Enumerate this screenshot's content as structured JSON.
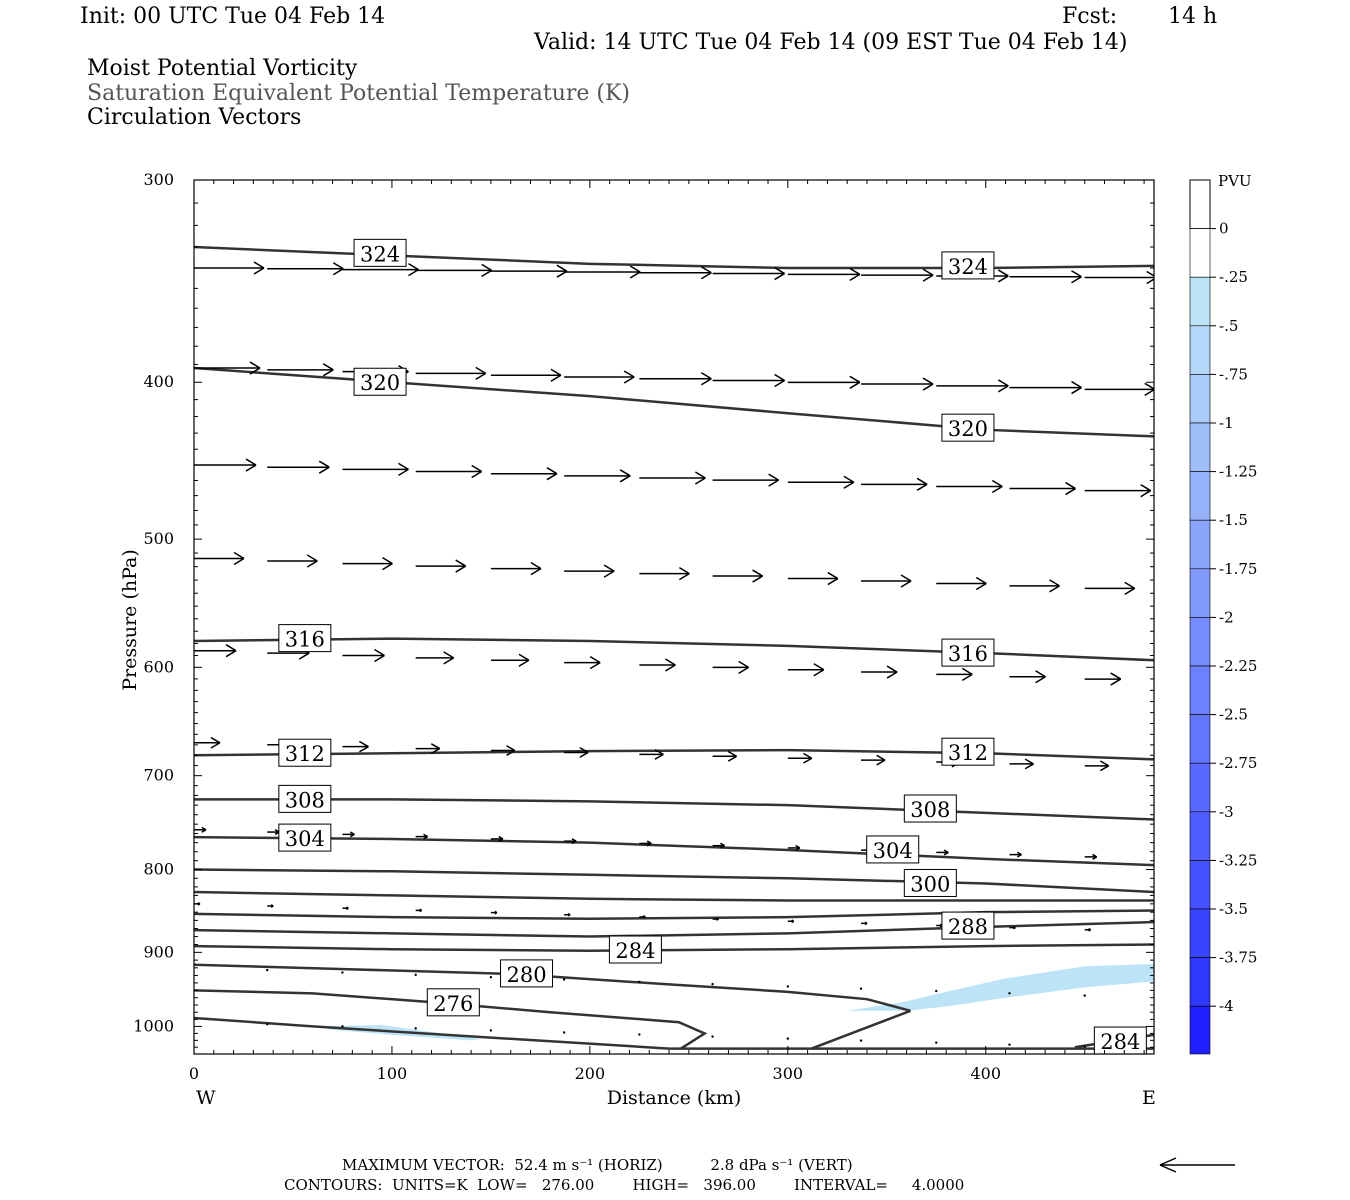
{
  "header": {
    "init": "Init: 00 UTC Tue 04 Feb 14",
    "fcst_label": "Fcst:",
    "fcst_value": "14 h",
    "valid": "Valid: 14 UTC Tue 04 Feb 14 (09 EST Tue 04 Feb 14)",
    "field1": "Moist Potential Vorticity",
    "field2": "Saturation Equivalent Potential Temperature (K)",
    "field3": "Circulation Vectors"
  },
  "footer": {
    "max_vector": "MAXIMUM VECTOR:  52.4 m s⁻¹ (HORIZ)          2.8 dPa s⁻¹ (VERT)",
    "contours": "CONTOURS:  UNITS=K  LOW=   276.00        HIGH=   396.00        INTERVAL=     4.0000"
  },
  "colors": {
    "contour": "#333333",
    "shade_light": "#bde3f7",
    "ref_arrow": "#000000"
  },
  "chart_data": {
    "type": "cross-section",
    "xlabel": "Distance (km)",
    "ylabel": "Pressure (hPa)",
    "xlim": [
      0,
      485
    ],
    "ylim": [
      300,
      1040
    ],
    "y_log_scale": true,
    "x_ticks": [
      0,
      100,
      200,
      300,
      400
    ],
    "y_ticks": [
      300,
      400,
      500,
      600,
      700,
      800,
      900,
      1000
    ],
    "x_end_labels": {
      "left": "W",
      "right": "E"
    },
    "colorbar": {
      "unit": "PVU",
      "labels": [
        "0",
        "-.25",
        "-.5",
        "-.75",
        "-1",
        "-1.25",
        "-1.5",
        "-1.75",
        "-2",
        "-2.25",
        "-2.5",
        "-2.75",
        "-3",
        "-3.25",
        "-3.5",
        "-3.75",
        "-4"
      ],
      "colors": [
        "#ffffff",
        "#bde3f7",
        "#b4d6f8",
        "#aacaf9",
        "#a0befa",
        "#96b2fb",
        "#8ca5fc",
        "#8299fc",
        "#778dfd",
        "#6d80fd",
        "#6374fe",
        "#5968fe",
        "#4f5cfe",
        "#4550ff",
        "#3a44ff",
        "#3038ff",
        "#1f1fff"
      ]
    },
    "contours": [
      {
        "label": "324",
        "points": [
          [
            0,
            330
          ],
          [
            100,
            334
          ],
          [
            200,
            338
          ],
          [
            300,
            340
          ],
          [
            400,
            340
          ],
          [
            485,
            339
          ]
        ],
        "label_positions": [
          [
            94,
            333
          ],
          [
            391,
            339
          ]
        ]
      },
      {
        "label": "320",
        "points": [
          [
            0,
            392
          ],
          [
            100,
            400
          ],
          [
            200,
            408
          ],
          [
            300,
            418
          ],
          [
            400,
            428
          ],
          [
            485,
            432
          ]
        ],
        "label_positions": [
          [
            94,
            400
          ],
          [
            391,
            427
          ]
        ]
      },
      {
        "label": "316",
        "points": [
          [
            0,
            578
          ],
          [
            100,
            576
          ],
          [
            200,
            578
          ],
          [
            300,
            582
          ],
          [
            400,
            588
          ],
          [
            485,
            594
          ]
        ],
        "label_positions": [
          [
            56,
            576
          ],
          [
            391,
            588
          ]
        ]
      },
      {
        "label": "312",
        "points": [
          [
            0,
            680
          ],
          [
            100,
            678
          ],
          [
            200,
            676
          ],
          [
            300,
            675
          ],
          [
            400,
            678
          ],
          [
            485,
            684
          ]
        ],
        "label_positions": [
          [
            56,
            678
          ],
          [
            391,
            677
          ]
        ]
      },
      {
        "label": "308",
        "points": [
          [
            0,
            724
          ],
          [
            100,
            724
          ],
          [
            200,
            726
          ],
          [
            300,
            730
          ],
          [
            400,
            738
          ],
          [
            485,
            745
          ]
        ],
        "label_positions": [
          [
            56,
            724
          ],
          [
            372,
            734
          ]
        ]
      },
      {
        "label": "304",
        "points": [
          [
            0,
            764
          ],
          [
            100,
            766
          ],
          [
            200,
            770
          ],
          [
            300,
            778
          ],
          [
            400,
            788
          ],
          [
            485,
            795
          ]
        ],
        "label_positions": [
          [
            56,
            765
          ],
          [
            353,
            778
          ]
        ]
      },
      {
        "label": "300",
        "points": [
          [
            0,
            800
          ],
          [
            100,
            802
          ],
          [
            200,
            806
          ],
          [
            300,
            810
          ],
          [
            400,
            816
          ],
          [
            485,
            826
          ]
        ],
        "label_positions": [
          [
            372,
            816
          ]
        ]
      },
      {
        "label": "",
        "points": [
          [
            0,
            826
          ],
          [
            100,
            830
          ],
          [
            200,
            834
          ],
          [
            300,
            836
          ],
          [
            400,
            836
          ],
          [
            485,
            836
          ]
        ],
        "label_positions": []
      },
      {
        "label": "",
        "points": [
          [
            0,
            852
          ],
          [
            100,
            856
          ],
          [
            200,
            858
          ],
          [
            300,
            856
          ],
          [
            400,
            850
          ],
          [
            485,
            848
          ]
        ],
        "label_positions": []
      },
      {
        "label": "288",
        "points": [
          [
            0,
            872
          ],
          [
            100,
            876
          ],
          [
            200,
            880
          ],
          [
            300,
            876
          ],
          [
            400,
            868
          ],
          [
            485,
            862
          ]
        ],
        "label_positions": [
          [
            391,
            867
          ]
        ]
      },
      {
        "label": "284",
        "points": [
          [
            0,
            892
          ],
          [
            100,
            896
          ],
          [
            200,
            898
          ],
          [
            300,
            896
          ],
          [
            400,
            892
          ],
          [
            485,
            890
          ]
        ],
        "label_positions": [
          [
            223,
            897
          ]
        ]
      },
      {
        "label": "280",
        "points": [
          [
            0,
            916
          ],
          [
            80,
            922
          ],
          [
            160,
            928
          ],
          [
            240,
            942
          ],
          [
            300,
            952
          ],
          [
            340,
            962
          ],
          [
            362,
            978
          ]
        ],
        "label_positions": [
          [
            168,
            928
          ]
        ]
      },
      {
        "label": "276",
        "points": [
          [
            0,
            950
          ],
          [
            60,
            954
          ],
          [
            120,
            966
          ],
          [
            180,
            980
          ],
          [
            245,
            994
          ],
          [
            258,
            1010
          ],
          [
            246,
            1032
          ]
        ],
        "label_positions": [
          [
            131,
            967
          ]
        ]
      },
      {
        "label": "284",
        "points": [
          [
            445,
            1030
          ],
          [
            485,
            1012
          ]
        ],
        "label_positions": [
          [
            468,
            1021
          ]
        ]
      },
      {
        "label": "",
        "points": [
          [
            312,
            1032
          ],
          [
            362,
            978
          ]
        ],
        "label_positions": []
      },
      {
        "label": "",
        "points": [
          [
            0,
            988
          ],
          [
            60,
            1000
          ],
          [
            150,
            1016
          ],
          [
            240,
            1032
          ],
          [
            485,
            1032
          ]
        ],
        "label_positions": []
      }
    ],
    "shaded_regions": [
      {
        "pv": -0.25,
        "points": [
          [
            330,
            978
          ],
          [
            358,
            966
          ],
          [
            380,
            952
          ],
          [
            410,
            934
          ],
          [
            450,
            918
          ],
          [
            485,
            915
          ],
          [
            485,
            938
          ],
          [
            450,
            946
          ],
          [
            410,
            960
          ],
          [
            380,
            972
          ],
          [
            360,
            978
          ]
        ]
      },
      {
        "pv": -0.25,
        "points": [
          [
            62,
            1000
          ],
          [
            95,
            998
          ],
          [
            145,
            1018
          ],
          [
            140,
            1020
          ],
          [
            100,
            1012
          ],
          [
            70,
            1005
          ]
        ]
      }
    ],
    "vectors": [
      {
        "p": 340,
        "y_end": 345,
        "x": [
          0,
          37,
          75,
          112,
          150,
          187,
          225,
          262,
          300,
          337,
          375,
          412,
          450
        ],
        "len": [
          35,
          38,
          38,
          38,
          38,
          38,
          36,
          36,
          36,
          36,
          36,
          36,
          36
        ]
      },
      {
        "p": 392,
        "y_end": 405,
        "x": [
          0,
          37,
          75,
          112,
          150,
          187,
          225,
          262,
          300,
          337,
          375,
          412,
          450
        ],
        "len": [
          33,
          33,
          33,
          35,
          35,
          35,
          36,
          36,
          36,
          36,
          36,
          36,
          35
        ]
      },
      {
        "p": 450,
        "y_end": 468,
        "x": [
          0,
          37,
          75,
          112,
          150,
          187,
          225,
          262,
          300,
          337,
          375,
          412,
          450
        ],
        "len": [
          31,
          31,
          33,
          33,
          33,
          33,
          33,
          33,
          33,
          33,
          33,
          33,
          33
        ]
      },
      {
        "p": 514,
        "y_end": 538,
        "x": [
          0,
          37,
          75,
          112,
          150,
          187,
          225,
          262,
          300,
          337,
          375,
          412,
          450
        ],
        "len": [
          25,
          25,
          25,
          25,
          25,
          25,
          25,
          25,
          25,
          25,
          25,
          25,
          25
        ]
      },
      {
        "p": 586,
        "y_end": 612,
        "x": [
          0,
          37,
          75,
          112,
          150,
          187,
          225,
          262,
          300,
          337,
          375,
          412,
          450
        ],
        "len": [
          21,
          21,
          21,
          19,
          19,
          18,
          18,
          18,
          18,
          18,
          18,
          18,
          18
        ]
      },
      {
        "p": 668,
        "y_end": 692,
        "x": [
          0,
          37,
          75,
          112,
          150,
          187,
          225,
          262,
          300,
          337,
          375,
          412,
          450
        ],
        "len": [
          13,
          13,
          13,
          12,
          12,
          12,
          12,
          12,
          12,
          12,
          12,
          12,
          12
        ]
      },
      {
        "p": 756,
        "y_end": 788,
        "x": [
          0,
          37,
          75,
          112,
          150,
          187,
          225,
          262,
          300,
          337,
          375,
          412,
          450
        ],
        "len": [
          6,
          6,
          6,
          6,
          6,
          6,
          6,
          6,
          6,
          6,
          6,
          6,
          6
        ]
      },
      {
        "p": 840,
        "y_end": 874,
        "x": [
          0,
          37,
          75,
          112,
          150,
          187,
          225,
          262,
          300,
          337,
          375,
          412,
          450
        ],
        "len": [
          3,
          3,
          3,
          3,
          3,
          3,
          3,
          3,
          3,
          3,
          3,
          3,
          3
        ]
      },
      {
        "p": 920,
        "y_end": 960,
        "x": [
          37,
          75,
          112,
          150,
          187,
          225,
          262,
          300,
          337,
          375,
          412,
          450
        ],
        "len": [
          1,
          1,
          1,
          1,
          1,
          1,
          1,
          1,
          1,
          1,
          1,
          1
        ]
      },
      {
        "p": 994,
        "y_end": 1032,
        "x": [
          37,
          75,
          112,
          150,
          187,
          225,
          262,
          300,
          337,
          375,
          412,
          450
        ],
        "len": [
          1,
          1,
          1,
          1,
          1,
          1,
          1,
          1,
          1,
          1,
          1,
          1
        ]
      }
    ]
  }
}
